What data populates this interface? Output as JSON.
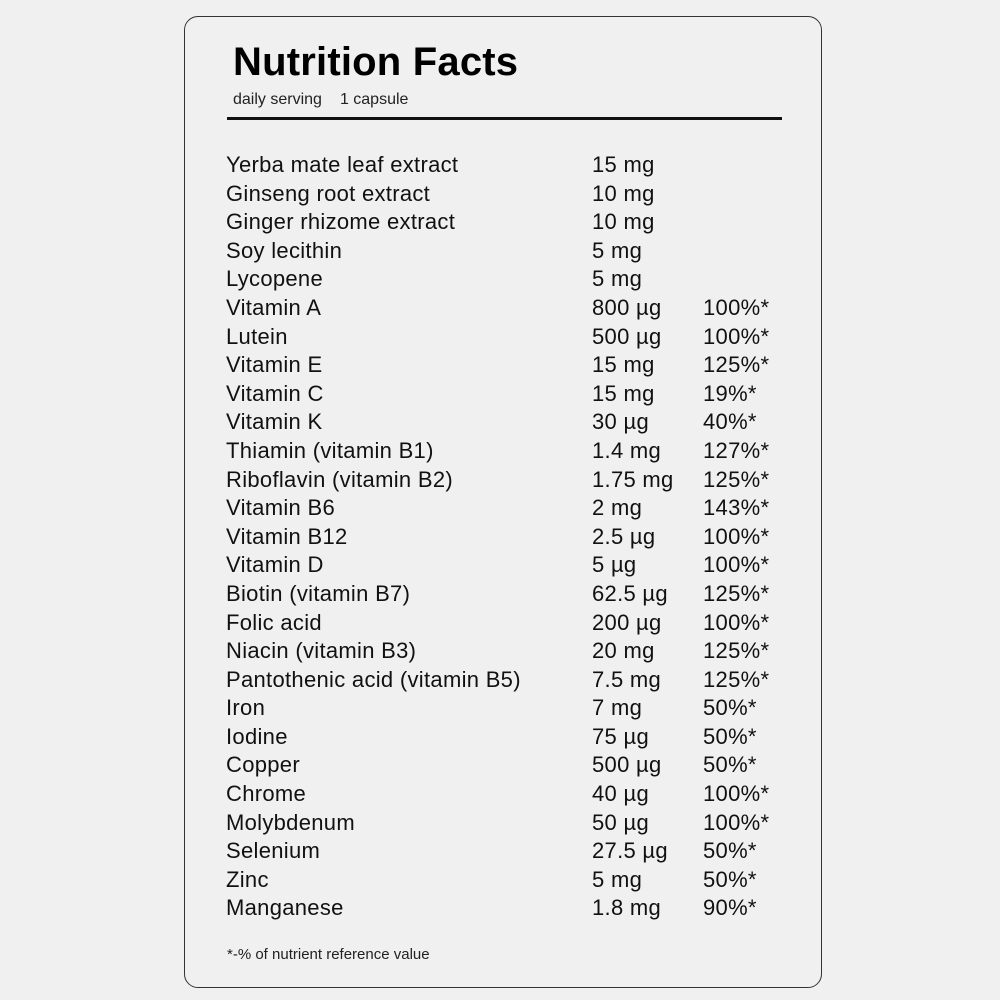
{
  "title": "Nutrition Facts",
  "serving": {
    "label": "daily serving",
    "value": "1 capsule"
  },
  "rows": [
    {
      "name": "Yerba mate leaf extract",
      "amount": "15 mg",
      "percent": ""
    },
    {
      "name": "Ginseng root extract",
      "amount": "10 mg",
      "percent": ""
    },
    {
      "name": "Ginger rhizome extract",
      "amount": "10 mg",
      "percent": ""
    },
    {
      "name": "Soy lecithin",
      "amount": "5 mg",
      "percent": ""
    },
    {
      "name": "Lycopene",
      "amount": "5 mg",
      "percent": ""
    },
    {
      "name": "Vitamin A",
      "amount": "800 µg",
      "percent": "100%*"
    },
    {
      "name": "Lutein",
      "amount": "500 µg",
      "percent": "100%*"
    },
    {
      "name": "Vitamin E",
      "amount": "15 mg",
      "percent": "125%*"
    },
    {
      "name": "Vitamin C",
      "amount": "15 mg",
      "percent": "19%*"
    },
    {
      "name": "Vitamin K",
      "amount": "30 µg",
      "percent": "40%*"
    },
    {
      "name": "Thiamin (vitamin B1)",
      "amount": "1.4 mg",
      "percent": "127%*"
    },
    {
      "name": "Riboflavin (vitamin B2)",
      "amount": "1.75 mg",
      "percent": "125%*"
    },
    {
      "name": "Vitamin B6",
      "amount": "2 mg",
      "percent": "143%*"
    },
    {
      "name": "Vitamin B12",
      "amount": "2.5 µg",
      "percent": "100%*"
    },
    {
      "name": "Vitamin D",
      "amount": "5 µg",
      "percent": "100%*"
    },
    {
      "name": "Biotin (vitamin B7)",
      "amount": "62.5 µg",
      "percent": "125%*"
    },
    {
      "name": "Folic acid",
      "amount": "200 µg",
      "percent": "100%*"
    },
    {
      "name": "Niacin (vitamin B3)",
      "amount": "20 mg",
      "percent": "125%*"
    },
    {
      "name": "Pantothenic acid (vitamin B5)",
      "amount": "7.5 mg",
      "percent": "125%*"
    },
    {
      "name": "Iron",
      "amount": "7 mg",
      "percent": "50%*"
    },
    {
      "name": "Iodine",
      "amount": "75 µg",
      "percent": "50%*"
    },
    {
      "name": "Copper",
      "amount": "500 µg",
      "percent": "50%*"
    },
    {
      "name": "Chrome",
      "amount": "40 µg",
      "percent": "100%*"
    },
    {
      "name": "Molybdenum",
      "amount": "50 µg",
      "percent": "100%*"
    },
    {
      "name": "Selenium",
      "amount": "27.5 µg",
      "percent": "50%*"
    },
    {
      "name": "Zinc",
      "amount": "5 mg",
      "percent": "50%*"
    },
    {
      "name": "Manganese",
      "amount": "1.8 mg",
      "percent": "90%*"
    }
  ],
  "footnote": "*-% of nutrient reference value"
}
